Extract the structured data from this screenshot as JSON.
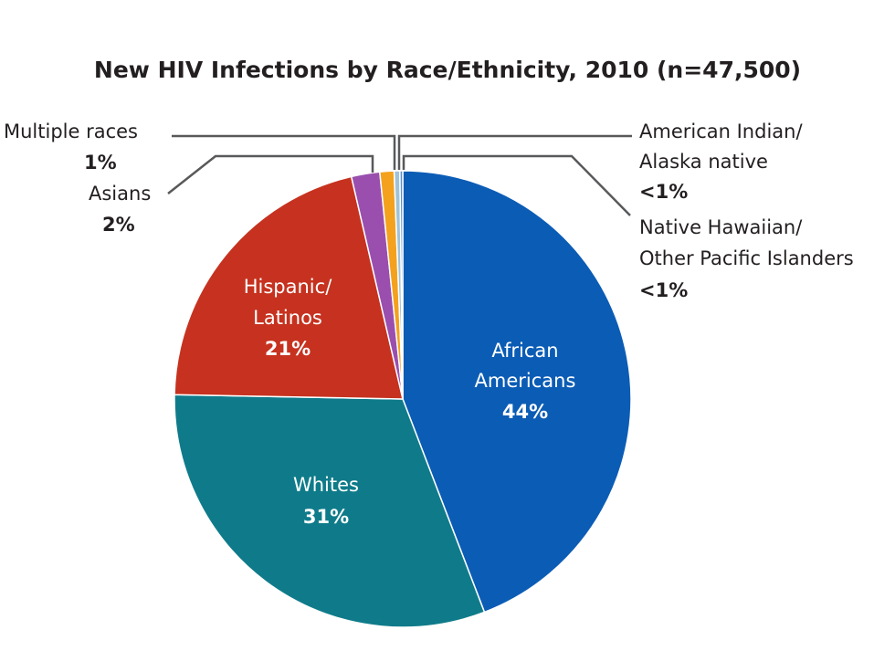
{
  "chart_data": {
    "type": "pie",
    "title": "New HIV Infections by Race/Ethnicity, 2010 (n=47,500)",
    "start_angle": "12 o'clock",
    "direction": "clockwise",
    "slices": [
      {
        "name": "African Americans",
        "label_lines": [
          "African",
          "Americans"
        ],
        "value": 44,
        "label": "44%",
        "color": "#0b5cb5"
      },
      {
        "name": "Whites",
        "label_lines": [
          "Whites"
        ],
        "value": 31,
        "label": "31%",
        "color": "#0f7b8a"
      },
      {
        "name": "Hispanic/Latinos",
        "label_lines": [
          "Hispanic/",
          "Latinos"
        ],
        "value": 21,
        "label": "21%",
        "color": "#c6321f"
      },
      {
        "name": "Asians",
        "label_lines": [
          "Asians"
        ],
        "value": 2,
        "label": "2%",
        "color": "#9a4fae"
      },
      {
        "name": "Multiple races",
        "label_lines": [
          "Multiple races"
        ],
        "value": 1,
        "label": "1%",
        "color": "#f4a11d"
      },
      {
        "name": "American Indian/Alaska native",
        "label_lines": [
          "American Indian/",
          "Alaska native"
        ],
        "value": 0.4,
        "label": "<1%",
        "color": "#9fc3d8"
      },
      {
        "name": "Native Hawaiian/Other Pacific Islanders",
        "label_lines": [
          "Native Hawaiian/",
          "Other Pacific Islanders"
        ],
        "value": 0.2,
        "label": "<1%",
        "color": "#5a8fc9"
      }
    ]
  }
}
